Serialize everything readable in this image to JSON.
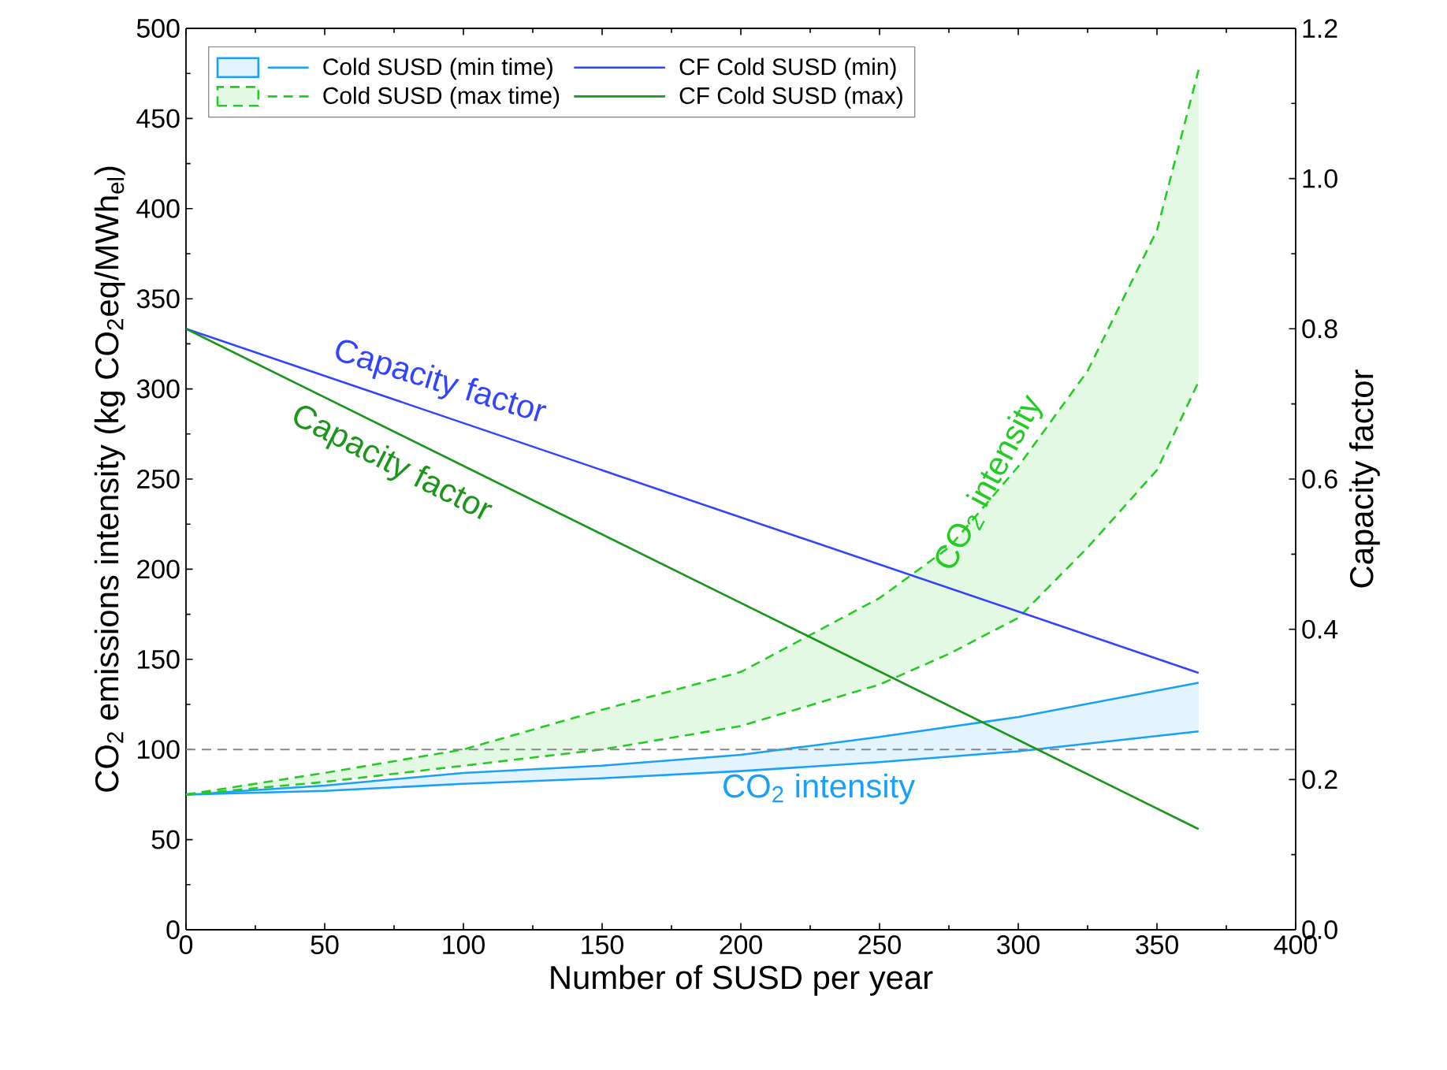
{
  "chart_data": {
    "type": "line",
    "xlabel": "Number of SUSD per year",
    "ylabel": "CO$_{2}$ emissions intensity (kg CO$_{2}$eq/MWh$_{el}$)",
    "y2label": "Capacity factor",
    "xlim": [
      0,
      400
    ],
    "xticks": [
      0,
      50,
      100,
      150,
      200,
      250,
      300,
      350,
      400
    ],
    "ylim": [
      0,
      500
    ],
    "yticks": [
      0,
      50,
      100,
      150,
      200,
      250,
      300,
      350,
      400,
      450,
      500
    ],
    "y2lim": [
      0,
      1.2
    ],
    "y2ticks": [
      {
        "value": 0,
        "label": "0.0"
      },
      {
        "value": 0.2,
        "label": "0.2"
      },
      {
        "value": 0.4,
        "label": "0.4"
      },
      {
        "value": 0.6,
        "label": "0.6"
      },
      {
        "value": 0.8,
        "label": "0.8"
      },
      {
        "value": 1.0,
        "label": "1.0"
      },
      {
        "value": 1.2,
        "label": "1.2"
      }
    ],
    "legend": "top left",
    "grid": false,
    "series": [
      {
        "name": "Cold SUSD (min time)",
        "line_style": "solid",
        "color": "#1aa0f5",
        "x": [
          0,
          50,
          100,
          150,
          200,
          250,
          300,
          365
        ],
        "values": [
          75,
          80,
          87,
          91,
          97,
          107,
          118,
          137
        ],
        "lower": [
          75,
          77,
          81,
          84,
          88,
          93,
          99,
          110
        ],
        "upper": [
          75,
          80,
          87,
          91,
          97,
          107,
          118,
          137
        ]
      },
      {
        "name": "Cold SUSD (max time)",
        "line_style": "dashed",
        "color": "#22cc22",
        "x": [
          0,
          50,
          100,
          150,
          200,
          250,
          275,
          300,
          325,
          350,
          365
        ],
        "values": [
          75,
          87,
          100,
          122,
          143,
          184,
          212,
          257,
          310,
          388,
          477
        ],
        "lower": [
          75,
          82,
          91,
          100,
          113,
          136,
          153,
          173,
          212,
          255,
          304
        ],
        "upper": [
          75,
          87,
          100,
          122,
          143,
          184,
          212,
          257,
          310,
          388,
          477
        ]
      },
      {
        "line_style": "solid",
        "color": "#1aa0f5",
        "x": [
          0,
          50,
          100,
          150,
          200,
          250,
          300,
          365
        ],
        "values": [
          75,
          77,
          81,
          84,
          88,
          93,
          99,
          110
        ]
      },
      {
        "line_style": "dashed",
        "color": "#22cc22",
        "x": [
          0,
          50,
          100,
          150,
          200,
          250,
          275,
          300,
          325,
          350,
          365
        ],
        "values": [
          75,
          82,
          91,
          100,
          113,
          136,
          153,
          173,
          212,
          255,
          304
        ]
      },
      {
        "name": "CF Cold SUSD (min)",
        "line_style": "solid",
        "axis": "y2",
        "color": "#3344ff",
        "x": [
          0,
          365
        ],
        "values": [
          0.8,
          0.342
        ]
      },
      {
        "name": "CF Cold SUSD (max)",
        "line_style": "solid",
        "axis": "y2",
        "color": "#1a961a",
        "x": [
          0,
          365
        ],
        "values": [
          0.8,
          0.134
        ]
      }
    ],
    "ref_lines": [
      {
        "axis": "y",
        "value": 100,
        "color": "#888888",
        "line_style": "dashed"
      }
    ],
    "annotations": [
      "Capacity factor",
      "Capacity factor",
      "CO$_{2}$ intensity",
      "CO$_{2}$ intensity"
    ]
  }
}
